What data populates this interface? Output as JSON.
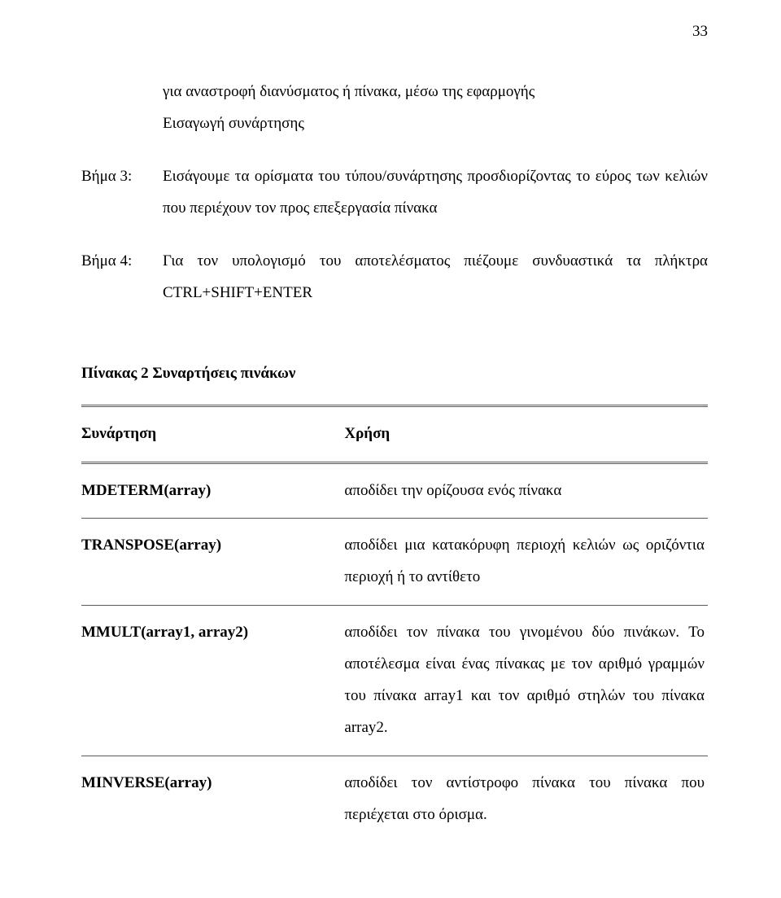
{
  "page_number": "33",
  "intro_line1": "για αναστροφή διανύσματος ή πίνακα, μέσω της εφαρμογής",
  "intro_line2": "Εισαγωγή συνάρτησης",
  "steps": [
    {
      "label": "Βήμα 3:",
      "body": "Εισάγουμε τα ορίσματα του τύπου/συνάρτησης προσδιορίζοντας το εύρος των κελιών που περιέχουν τον προς επεξεργασία πίνακα"
    },
    {
      "label": "Βήμα 4:",
      "body": "Για τον υπολογισμό του αποτελέσματος πιέζουμε συνδυαστικά τα πλήκτρα CTRL+SHIFT+ENTER"
    }
  ],
  "table_title": "Πίνακας 2 Συναρτήσεις πινάκων",
  "table_header": {
    "func": "Συνάρτηση",
    "use": "Χρήση"
  },
  "rows": [
    {
      "func": "MDETERM(array)",
      "use": "αποδίδει την ορίζουσα ενός πίνακα"
    },
    {
      "func": "TRANSPOSE(array)",
      "use": "αποδίδει μια κατακόρυφη περιοχή κελιών ως οριζόντια περιοχή ή το αντίθετο"
    },
    {
      "func": "MMULT(array1, array2)",
      "use": "αποδίδει τον πίνακα του γινομένου δύο πινάκων. Το αποτέλεσμα είναι ένας πίνακας με τον αριθμό γραμμών του πίνακα array1 και τον αριθμό στηλών του πίνακα array2."
    },
    {
      "func": "MINVERSE(array)",
      "use": "αποδίδει τον αντίστροφο πίνακα του πίνακα που περιέχεται στο όρισμα."
    }
  ]
}
